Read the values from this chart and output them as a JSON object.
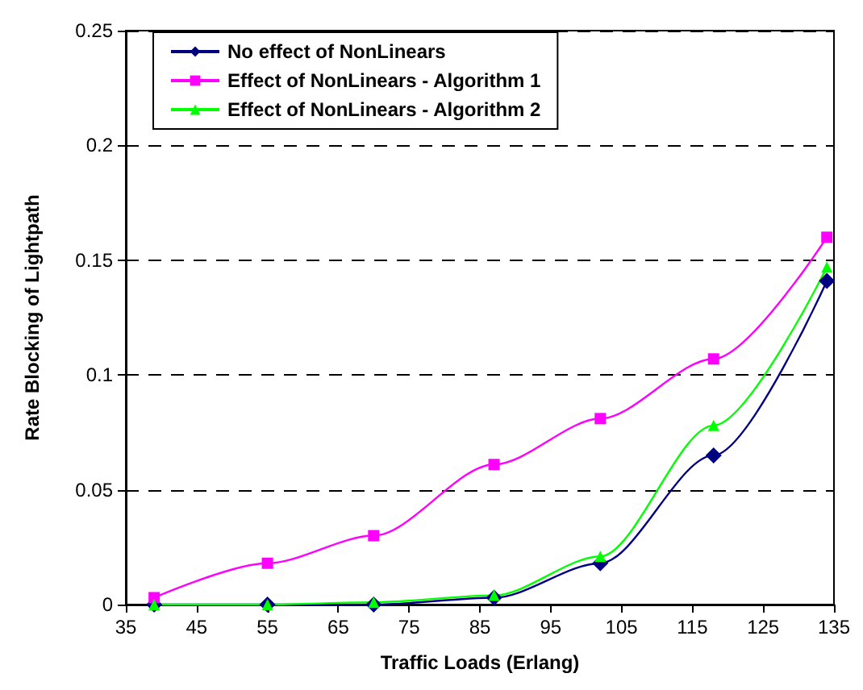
{
  "chart_data": {
    "type": "line",
    "xlabel": "Traffic Loads (Erlang)",
    "ylabel": "Rate Blocking of Lightpath",
    "x": [
      39,
      55,
      70,
      87,
      102,
      118,
      134
    ],
    "series": [
      {
        "name": "No effect of NonLinears",
        "color": "#000080",
        "marker": "diamond",
        "values": [
          0,
          0,
          0,
          0.003,
          0.018,
          0.065,
          0.141
        ]
      },
      {
        "name": "Effect of NonLinears - Algorithm 1",
        "color": "#ff00ff",
        "marker": "square",
        "values": [
          0.003,
          0.018,
          0.03,
          0.061,
          0.081,
          0.107,
          0.16
        ]
      },
      {
        "name": "Effect of NonLinears - Algorithm 2",
        "color": "#00ff00",
        "marker": "triangle",
        "values": [
          0,
          0,
          0.001,
          0.004,
          0.021,
          0.078,
          0.147
        ]
      }
    ],
    "xlim": [
      35,
      135
    ],
    "xticks": [
      35,
      45,
      55,
      65,
      75,
      85,
      95,
      105,
      115,
      125,
      135
    ],
    "ylim": [
      0,
      0.25
    ],
    "yticks": [
      0,
      0.05,
      0.1,
      0.15,
      0.2,
      0.25
    ],
    "grid": "y",
    "legend": "top left"
  }
}
